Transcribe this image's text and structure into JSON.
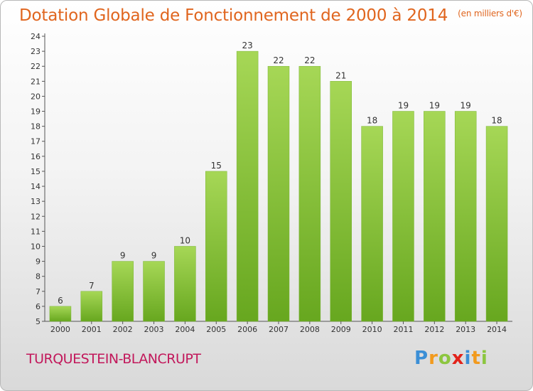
{
  "title": "Dotation Globale de Fonctionnement de 2000 à 2014",
  "unit_label": "(en milliers d'€)",
  "commune": "TURQUESTEIN-BLANCRUPT",
  "logo": {
    "letters": [
      "P",
      "r",
      "o",
      "x",
      "i",
      "t",
      "i"
    ],
    "colors": [
      "#3b8fd6",
      "#f29a1d",
      "#8cc63f",
      "#e2231a",
      "#3b8fd6",
      "#f29a1d",
      "#8cc63f"
    ]
  },
  "colors": {
    "title": "#e0651e",
    "commune": "#c2185b",
    "bar": "#8cc63f",
    "bar_dark": "#5f9a1e"
  },
  "chart_data": {
    "type": "bar",
    "categories": [
      "2000",
      "2001",
      "2002",
      "2003",
      "2004",
      "2005",
      "2006",
      "2007",
      "2008",
      "2009",
      "2010",
      "2011",
      "2012",
      "2013",
      "2014"
    ],
    "values": [
      6,
      7,
      9,
      9,
      10,
      15,
      23,
      22,
      22,
      21,
      18,
      19,
      19,
      19,
      18
    ],
    "ylim": [
      5,
      24
    ],
    "yticks": [
      5,
      6,
      7,
      8,
      9,
      10,
      11,
      12,
      13,
      14,
      15,
      16,
      17,
      18,
      19,
      20,
      21,
      22,
      23,
      24
    ],
    "grid": false,
    "legend": "none"
  }
}
